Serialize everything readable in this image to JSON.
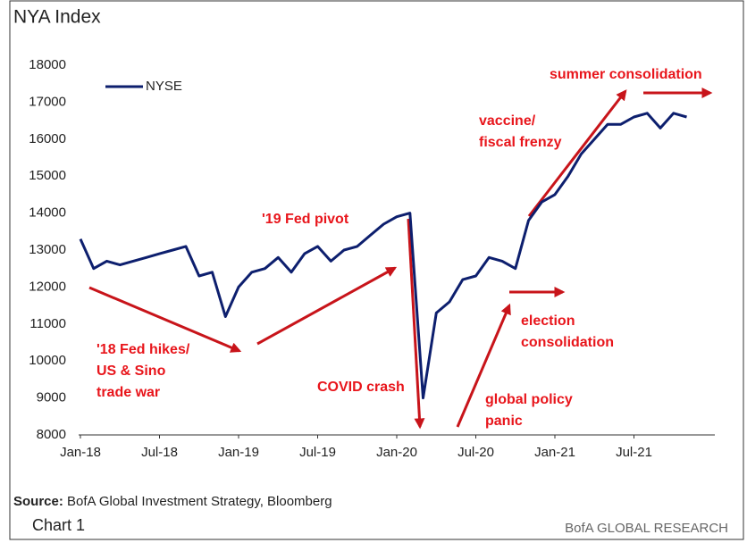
{
  "chart_data": {
    "type": "line",
    "title": "NYA Index",
    "categories": [
      "Jan-18",
      null,
      null,
      null,
      null,
      null,
      "Jul-18",
      null,
      null,
      null,
      null,
      null,
      "Jan-19",
      null,
      null,
      null,
      null,
      null,
      "Jul-19",
      null,
      null,
      null,
      null,
      null,
      "Jan-20",
      null,
      null,
      null,
      null,
      null,
      "Jul-20",
      null,
      null,
      null,
      null,
      null,
      "Jan-21",
      null,
      null,
      null,
      null,
      null,
      "Jul-21",
      null,
      null,
      null,
      null
    ],
    "series": [
      {
        "name": "NYSE",
        "color": "#0d1f6e",
        "values": [
          13300,
          12500,
          12700,
          12600,
          12700,
          12800,
          12900,
          13000,
          13100,
          12300,
          12400,
          11200,
          12000,
          12400,
          12500,
          12800,
          12400,
          12900,
          13100,
          12700,
          13000,
          13100,
          13400,
          13700,
          13900,
          14000,
          9000,
          11300,
          11600,
          12200,
          12300,
          12800,
          12700,
          12500,
          13800,
          14300,
          14500,
          15000,
          15600,
          16000,
          16400,
          16400,
          16600,
          16700,
          16300,
          16700,
          16600
        ]
      }
    ],
    "ylim": [
      8000,
      18000
    ],
    "yticks": [
      8000,
      9000,
      10000,
      11000,
      12000,
      13000,
      14000,
      15000,
      16000,
      17000,
      18000
    ],
    "legend": "upper left",
    "annotations": [
      {
        "lines": [
          "summer consolidation"
        ]
      },
      {
        "lines": [
          "vaccine/",
          "fiscal frenzy"
        ]
      },
      {
        "lines": [
          "'19 Fed pivot"
        ]
      },
      {
        "lines": [
          "'18 Fed hikes/",
          "US & Sino",
          "trade war"
        ]
      },
      {
        "lines": [
          "COVID crash"
        ]
      },
      {
        "lines": [
          "election",
          "consolidation"
        ]
      },
      {
        "lines": [
          "global policy",
          "panic"
        ]
      }
    ],
    "source_label": "Source:",
    "source": "BofA Global Investment Strategy, Bloomberg",
    "chart_number": "Chart 1",
    "brand": "BofA GLOBAL RESEARCH"
  }
}
